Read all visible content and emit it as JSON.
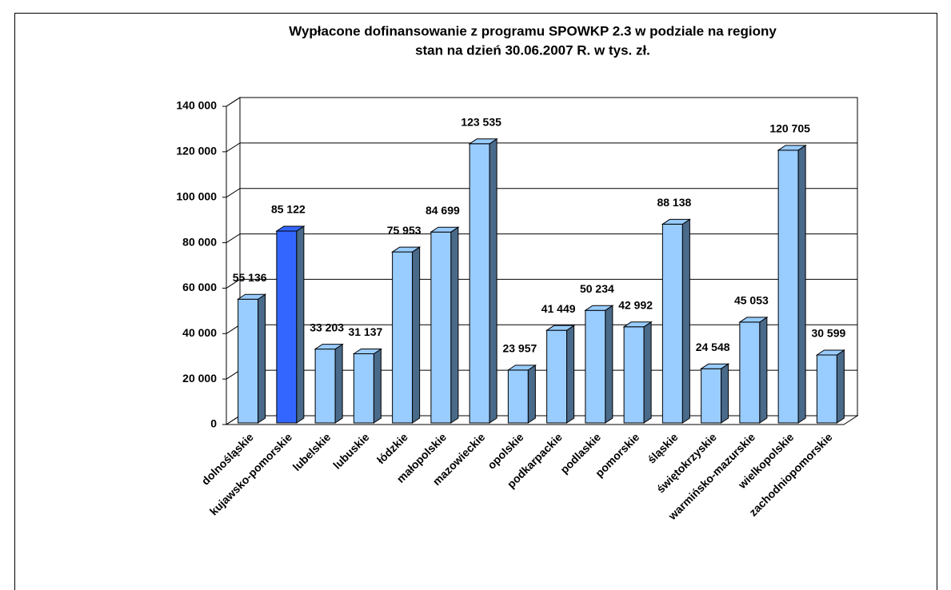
{
  "chart_data": {
    "type": "bar3d",
    "title": [
      "Wypłacone dofinansowanie z programu SPOWKP 2.3 w podziale na regiony",
      "stan na dzień 30.06.2007 R. w tys. zł."
    ],
    "categories": [
      "dolnośląskie",
      "kujawsko-pomorskie",
      "lubelskie",
      "lubuskie",
      "łódzkie",
      "małopolskie",
      "mazowieckie",
      "opolskie",
      "podkarpackie",
      "podlaskie",
      "pomorskie",
      "śląskie",
      "świętokrzyskie",
      "warmińsko-mazurskie",
      "wielkopolskie",
      "zachodniopomorskie"
    ],
    "values": [
      55136,
      85122,
      33203,
      31137,
      75953,
      84699,
      123535,
      23957,
      41449,
      50234,
      42992,
      88138,
      24548,
      45053,
      120705,
      30599
    ],
    "value_labels": [
      "55 136",
      "85 122",
      "33 203",
      "31 137",
      "75 953",
      "84 699",
      "123 535",
      "23 957",
      "41 449",
      "50 234",
      "42 992",
      "88 138",
      "24 548",
      "45 053",
      "120 705",
      "30 599"
    ],
    "colors": [
      "#99ccff",
      "#3366ff",
      "#99ccff",
      "#99ccff",
      "#99ccff",
      "#99ccff",
      "#99ccff",
      "#99ccff",
      "#99ccff",
      "#99ccff",
      "#99ccff",
      "#99ccff",
      "#99ccff",
      "#99ccff",
      "#99ccff",
      "#99ccff"
    ],
    "ylim": [
      0,
      140000
    ],
    "yticks": [
      {
        "value": 0,
        "label": "0"
      },
      {
        "value": 20000,
        "label": "20 000"
      },
      {
        "value": 40000,
        "label": "40 000"
      },
      {
        "value": 60000,
        "label": "60 000"
      },
      {
        "value": 80000,
        "label": "80 000"
      },
      {
        "value": 100000,
        "label": "100 000"
      },
      {
        "value": 120000,
        "label": "120 000"
      },
      {
        "value": 140000,
        "label": "140 000"
      }
    ],
    "grid": true
  }
}
